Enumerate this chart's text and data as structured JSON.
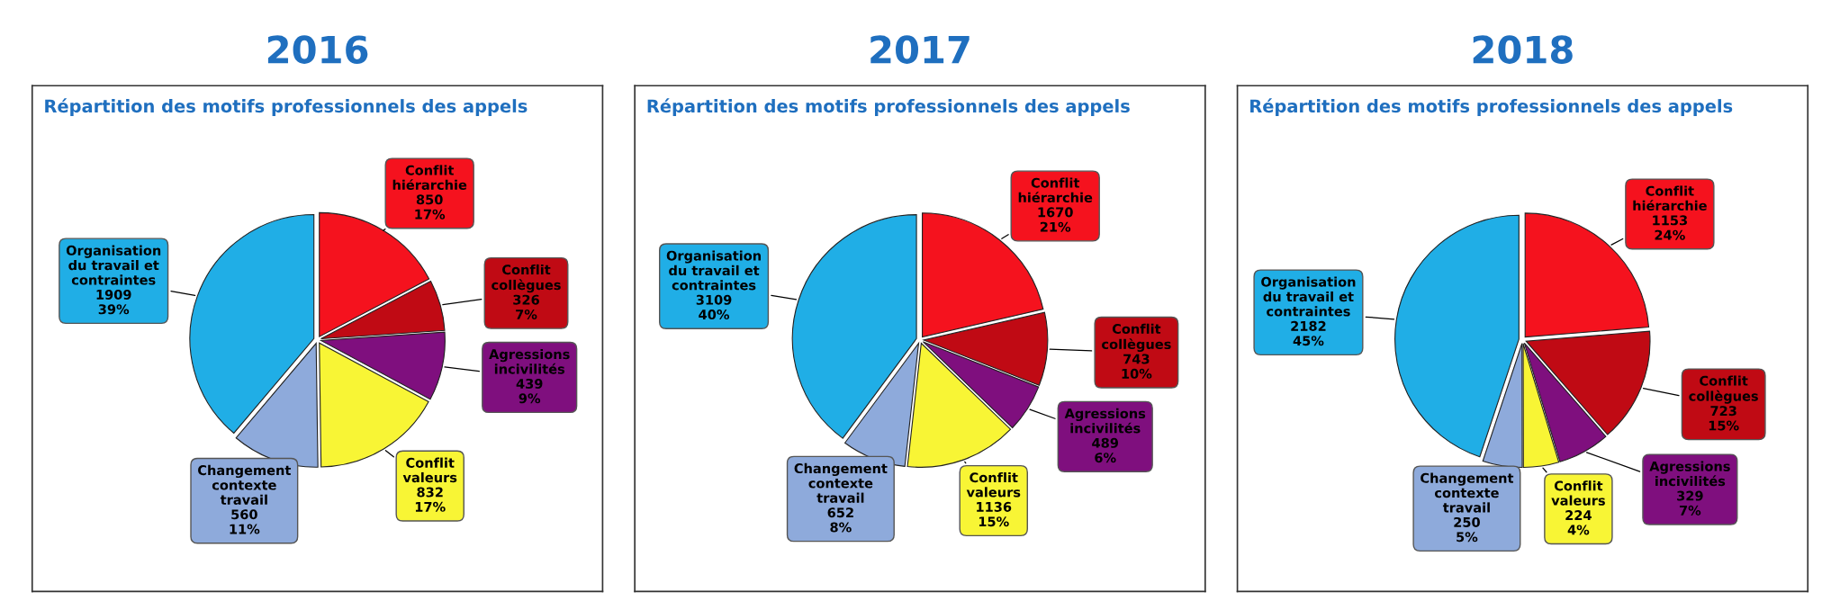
{
  "chart_data": [
    {
      "type": "pie",
      "title": "2016",
      "subtitle": "Répartition des motifs professionnels des appels",
      "categories": [
        "Conflit\nhiérarchie",
        "Conflit\ncollègues",
        "Agressions\nincivilités",
        "Conflit\nvaleurs",
        "Changement\ncontexte\ntravail",
        "Organisation\ndu travail et\ncontraintes"
      ],
      "values": [
        850,
        326,
        439,
        832,
        560,
        1909
      ],
      "value_labels": [
        "850\n17%",
        "326\n7%",
        "439\n9%",
        "832\n17%",
        "560\n11%",
        "1909\n39%"
      ],
      "colors": [
        "#f5121e",
        "#c00a14",
        "#7f0f7e",
        "#f8f535",
        "#8eaadb",
        "#20aee6"
      ]
    },
    {
      "type": "pie",
      "title": "2017",
      "subtitle": "Répartition des motifs professionnels des appels",
      "categories": [
        "Conflit\nhiérarchie",
        "Conflit\ncollègues",
        "Agressions\nincivilités",
        "Conflit\nvaleurs",
        "Changement\ncontexte\ntravail",
        "Organisation\ndu travail et\ncontraintes"
      ],
      "values": [
        1670,
        743,
        489,
        1136,
        652,
        3109
      ],
      "value_labels": [
        "1670\n21%",
        "743\n10%",
        "489\n6%",
        "1136\n15%",
        "652\n8%",
        "3109\n40%"
      ],
      "colors": [
        "#f5121e",
        "#c00a14",
        "#7f0f7e",
        "#f8f535",
        "#8eaadb",
        "#20aee6"
      ]
    },
    {
      "type": "pie",
      "title": "2018",
      "subtitle": "Répartition des motifs professionnels des appels",
      "categories": [
        "Conflit\nhiérarchie",
        "Conflit\ncollègues",
        "Agressions\nincivilités",
        "Conflit\nvaleurs",
        "Changement\ncontexte\ntravail",
        "Organisation\ndu travail et\ncontraintes"
      ],
      "values": [
        1153,
        723,
        329,
        224,
        250,
        2182
      ],
      "value_labels": [
        "1153\n24%",
        "723\n15%",
        "329\n7%",
        "224\n4%",
        "250\n5%",
        "2182\n45%"
      ],
      "colors": [
        "#f5121e",
        "#c00a14",
        "#7f0f7e",
        "#f8f535",
        "#8eaadb",
        "#20aee6"
      ]
    }
  ]
}
